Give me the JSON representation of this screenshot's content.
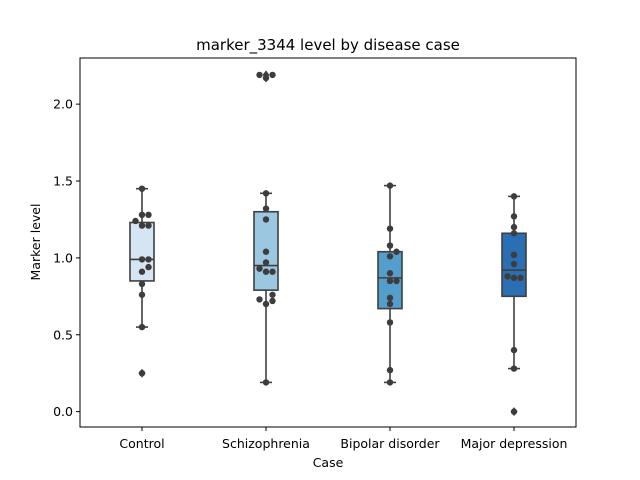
{
  "chart_data": {
    "type": "box",
    "title": "marker_3344 level by disease case",
    "xlabel": "Case",
    "ylabel": "Marker level",
    "ylim": [
      -0.1,
      2.3
    ],
    "yticks": [
      0.0,
      0.5,
      1.0,
      1.5,
      2.0
    ],
    "ytick_labels": [
      "0.0",
      "0.5",
      "1.0",
      "1.5",
      "2.0"
    ],
    "grid": false,
    "categories": [
      "Control",
      "Schizophrenia",
      "Bipolar disorder",
      "Major depression"
    ],
    "series": [
      {
        "category": "Control",
        "color": "#d6e5f4",
        "box": {
          "whisker_low": 0.55,
          "q1": 0.85,
          "median": 0.99,
          "q3": 1.23,
          "whisker_high": 1.45
        },
        "outliers": [
          0.25
        ],
        "points": [
          1.45,
          1.28,
          1.28,
          1.24,
          1.21,
          1.21,
          0.99,
          0.99,
          0.94,
          0.91,
          0.83,
          0.76,
          0.55,
          0.25
        ]
      },
      {
        "category": "Schizophrenia",
        "color": "#9cc7e0",
        "box": {
          "whisker_low": 0.19,
          "q1": 0.79,
          "median": 0.95,
          "q3": 1.3,
          "whisker_high": 1.42
        },
        "outliers": [
          2.19,
          2.17
        ],
        "points": [
          2.19,
          2.19,
          2.17,
          1.42,
          1.32,
          1.25,
          1.04,
          0.97,
          0.93,
          0.91,
          0.91,
          0.76,
          0.73,
          0.72,
          0.7,
          0.19
        ]
      },
      {
        "category": "Bipolar disorder",
        "color": "#539ecd",
        "box": {
          "whisker_low": 0.19,
          "q1": 0.67,
          "median": 0.87,
          "q3": 1.04,
          "whisker_high": 1.47
        },
        "outliers": [],
        "points": [
          1.47,
          1.19,
          1.08,
          1.04,
          1.01,
          0.9,
          0.85,
          0.85,
          0.74,
          0.7,
          0.58,
          0.27,
          0.19
        ]
      },
      {
        "category": "Major depression",
        "color": "#2a6fb4",
        "box": {
          "whisker_low": 0.28,
          "q1": 0.75,
          "median": 0.92,
          "q3": 1.16,
          "whisker_high": 1.4
        },
        "outliers": [
          0.0
        ],
        "points": [
          1.4,
          1.27,
          1.2,
          1.16,
          1.02,
          0.96,
          0.88,
          0.87,
          0.87,
          0.4,
          0.28,
          0.0
        ]
      }
    ]
  }
}
